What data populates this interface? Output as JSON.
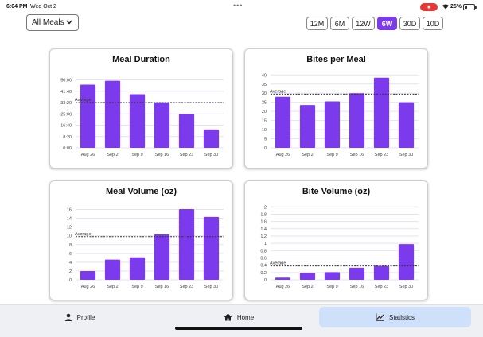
{
  "status": {
    "time": "6:04 PM",
    "date": "Wed Oct 2",
    "battery": "25%"
  },
  "filter": {
    "label": "All Meals"
  },
  "ranges": [
    {
      "label": "12M",
      "active": false
    },
    {
      "label": "6M",
      "active": false
    },
    {
      "label": "12W",
      "active": false
    },
    {
      "label": "6W",
      "active": true
    },
    {
      "label": "30D",
      "active": false
    },
    {
      "label": "10D",
      "active": false
    }
  ],
  "colors": {
    "bar": "#7c3aed",
    "average_line": "#333333",
    "grid": "#e6e2f3"
  },
  "chart_data": [
    {
      "type": "bar",
      "title": "Meal Duration",
      "categories": [
        "Aug 26",
        "Sep 2",
        "Sep 9",
        "Sep 16",
        "Sep 23",
        "Sep 30"
      ],
      "values": [
        2790,
        2960,
        2370,
        2010,
        1490,
        810
      ],
      "ylim": [
        0,
        3300
      ],
      "ytick_values": [
        0,
        500,
        1000,
        1500,
        2000,
        2500,
        3000
      ],
      "ytick_labels": [
        "0:00",
        "8:20",
        "16:40",
        "25:00",
        "33:20",
        "41:40",
        "50:00"
      ],
      "average": 2000,
      "average_label": "Average"
    },
    {
      "type": "bar",
      "title": "Bites per Meal",
      "categories": [
        "Aug 26",
        "Sep 2",
        "Sep 9",
        "Sep 16",
        "Sep 23",
        "Sep 30"
      ],
      "values": [
        28,
        23.5,
        25.5,
        30,
        38.5,
        25
      ],
      "ylim": [
        0,
        41
      ],
      "ytick_values": [
        0,
        5,
        10,
        15,
        20,
        25,
        30,
        35,
        40
      ],
      "ytick_labels": [
        "0",
        "5",
        "10",
        "15",
        "20",
        "25",
        "30",
        "35",
        "40"
      ],
      "average": 29.5,
      "average_label": "Average"
    },
    {
      "type": "bar",
      "title": "Meal Volume (oz)",
      "categories": [
        "Aug 26",
        "Sep 2",
        "Sep 9",
        "Sep 16",
        "Sep 23",
        "Sep 30"
      ],
      "values": [
        2,
        4.6,
        5.1,
        10.3,
        16.1,
        14.3
      ],
      "ylim": [
        0,
        17
      ],
      "ytick_values": [
        0,
        2,
        4,
        6,
        8,
        10,
        12,
        14,
        16
      ],
      "ytick_labels": [
        "0",
        "2",
        "4",
        "6",
        "8",
        "10",
        "12",
        "14",
        "16"
      ],
      "average": 9.8,
      "average_label": "Average"
    },
    {
      "type": "bar",
      "title": "Bite Volume (oz)",
      "categories": [
        "Aug 26",
        "Sep 2",
        "Sep 9",
        "Sep 16",
        "Sep 23",
        "Sep 30"
      ],
      "values": [
        0.06,
        0.19,
        0.21,
        0.33,
        0.38,
        0.98
      ],
      "ylim": [
        0,
        2.05
      ],
      "ytick_values": [
        0,
        0.2,
        0.4,
        0.6,
        0.8,
        1,
        1.2,
        1.4,
        1.6,
        1.8,
        2
      ],
      "ytick_labels": [
        "0",
        "0.2",
        "0.4",
        "0.6",
        "0.8",
        "1",
        "1.2",
        "1.4",
        "1.6",
        "1.8",
        "2"
      ],
      "average": 0.38,
      "average_label": "Average"
    }
  ],
  "tabs": [
    {
      "label": "Profile",
      "icon": "person-icon",
      "active": false
    },
    {
      "label": "Home",
      "icon": "home-icon",
      "active": false
    },
    {
      "label": "Statistics",
      "icon": "line-chart-icon",
      "active": true
    }
  ]
}
